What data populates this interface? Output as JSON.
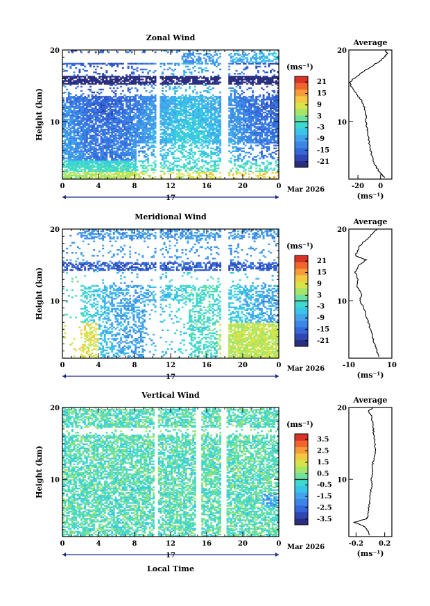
{
  "chart_data": [
    {
      "type": "heatmap",
      "title": "Zonal Wind",
      "ylabel": "Height (km)",
      "x_ticks": [
        "0",
        "4",
        "8",
        "12",
        "16",
        "20",
        "0"
      ],
      "y_ticks": [
        "20",
        "10"
      ],
      "xlim": [
        0,
        24
      ],
      "ylim": [
        2,
        20
      ],
      "date_day": "17",
      "date_month": "Mar 2026",
      "unit": "(ms⁻¹)",
      "colorbar_ticks": [
        "21",
        "15",
        "9",
        "3",
        "-3",
        "-9",
        "-15",
        "-21"
      ],
      "colorbar_range": [
        -24,
        24
      ],
      "average": {
        "title": "Average",
        "x_ticks": [
          "-20",
          "0"
        ],
        "xlim": [
          -28,
          10
        ],
        "y_ticks": [
          "20",
          "10"
        ],
        "xlabel": "(ms⁻¹)",
        "profile": [
          [
            2.2,
            4
          ],
          [
            2.6,
            1
          ],
          [
            3,
            -1
          ],
          [
            3.5,
            -3
          ],
          [
            4,
            -5
          ],
          [
            5,
            -7
          ],
          [
            6,
            -9
          ],
          [
            7,
            -10
          ],
          [
            8,
            -11
          ],
          [
            9,
            -12
          ],
          [
            10,
            -13
          ],
          [
            11,
            -13
          ],
          [
            12,
            -14
          ],
          [
            13,
            -17
          ],
          [
            14,
            -22
          ],
          [
            15,
            -26
          ],
          [
            15.5,
            -27
          ],
          [
            16,
            -24
          ],
          [
            17,
            -15
          ],
          [
            18,
            -5
          ],
          [
            18.5,
            0
          ],
          [
            19,
            3
          ],
          [
            19.5,
            6
          ],
          [
            20,
            4
          ]
        ]
      }
    },
    {
      "type": "heatmap",
      "title": "Meridional Wind",
      "ylabel": "Height (km)",
      "x_ticks": [
        "0",
        "4",
        "8",
        "12",
        "16",
        "20",
        "0"
      ],
      "y_ticks": [
        "20",
        "10"
      ],
      "xlim": [
        0,
        24
      ],
      "ylim": [
        2,
        20
      ],
      "date_day": "17",
      "date_month": "Mar 2026",
      "unit": "(ms⁻¹)",
      "colorbar_ticks": [
        "21",
        "15",
        "9",
        "3",
        "-3",
        "-9",
        "-15",
        "-21"
      ],
      "colorbar_range": [
        -24,
        24
      ],
      "average": {
        "title": "Average",
        "x_ticks": [
          "-10",
          "10"
        ],
        "xlim": [
          -10,
          10
        ],
        "y_ticks": [
          "20",
          "10"
        ],
        "xlabel": "(ms⁻¹)",
        "profile": [
          [
            2.2,
            4
          ],
          [
            3,
            3
          ],
          [
            4,
            2
          ],
          [
            5,
            1
          ],
          [
            6,
            0
          ],
          [
            7,
            -1
          ],
          [
            8,
            -2
          ],
          [
            9,
            -3
          ],
          [
            10,
            -5
          ],
          [
            11,
            -4
          ],
          [
            12,
            -6
          ],
          [
            13,
            -6
          ],
          [
            14,
            -7
          ],
          [
            15,
            -5
          ],
          [
            15.7,
            -2
          ],
          [
            16.3,
            -7
          ],
          [
            17,
            -6
          ],
          [
            18,
            -4
          ],
          [
            19,
            0
          ],
          [
            20,
            3
          ]
        ]
      }
    },
    {
      "type": "heatmap",
      "title": "Vertical Wind",
      "ylabel": "Height (km)",
      "x_ticks": [
        "0",
        "4",
        "8",
        "12",
        "16",
        "20",
        "0"
      ],
      "y_ticks": [
        "20",
        "10"
      ],
      "xlim": [
        0,
        24
      ],
      "ylim": [
        2,
        20
      ],
      "date_day": "17",
      "date_month": "Mar 2026",
      "xlabel": "Local Time",
      "unit": "(ms⁻¹)",
      "colorbar_ticks": [
        "3.5",
        "2.5",
        "1.5",
        "0.5",
        "-0.5",
        "-1.5",
        "-2.5",
        "-3.5"
      ],
      "colorbar_range": [
        -4,
        4
      ],
      "average": {
        "title": "Average",
        "x_ticks": [
          "-0.2",
          "0.2"
        ],
        "xlim": [
          -0.3,
          0.3
        ],
        "y_ticks": [
          "20",
          "10"
        ],
        "xlabel": "(ms⁻¹)",
        "profile": [
          [
            2.2,
            -0.02
          ],
          [
            3,
            -0.04
          ],
          [
            3.5,
            -0.1
          ],
          [
            4,
            -0.22
          ],
          [
            4.5,
            -0.05
          ],
          [
            5,
            -0.03
          ],
          [
            6,
            -0.02
          ],
          [
            7,
            -0.01
          ],
          [
            8,
            0
          ],
          [
            9,
            0.02
          ],
          [
            10,
            0.02
          ],
          [
            11,
            0.03
          ],
          [
            12,
            0.03
          ],
          [
            13,
            0.05
          ],
          [
            14,
            0.08
          ],
          [
            15,
            0.06
          ],
          [
            16,
            0.05
          ],
          [
            17,
            0.04
          ],
          [
            18,
            0.03
          ],
          [
            19,
            0.01
          ],
          [
            19.5,
            -0.03
          ],
          [
            20,
            0.04
          ]
        ]
      }
    }
  ]
}
